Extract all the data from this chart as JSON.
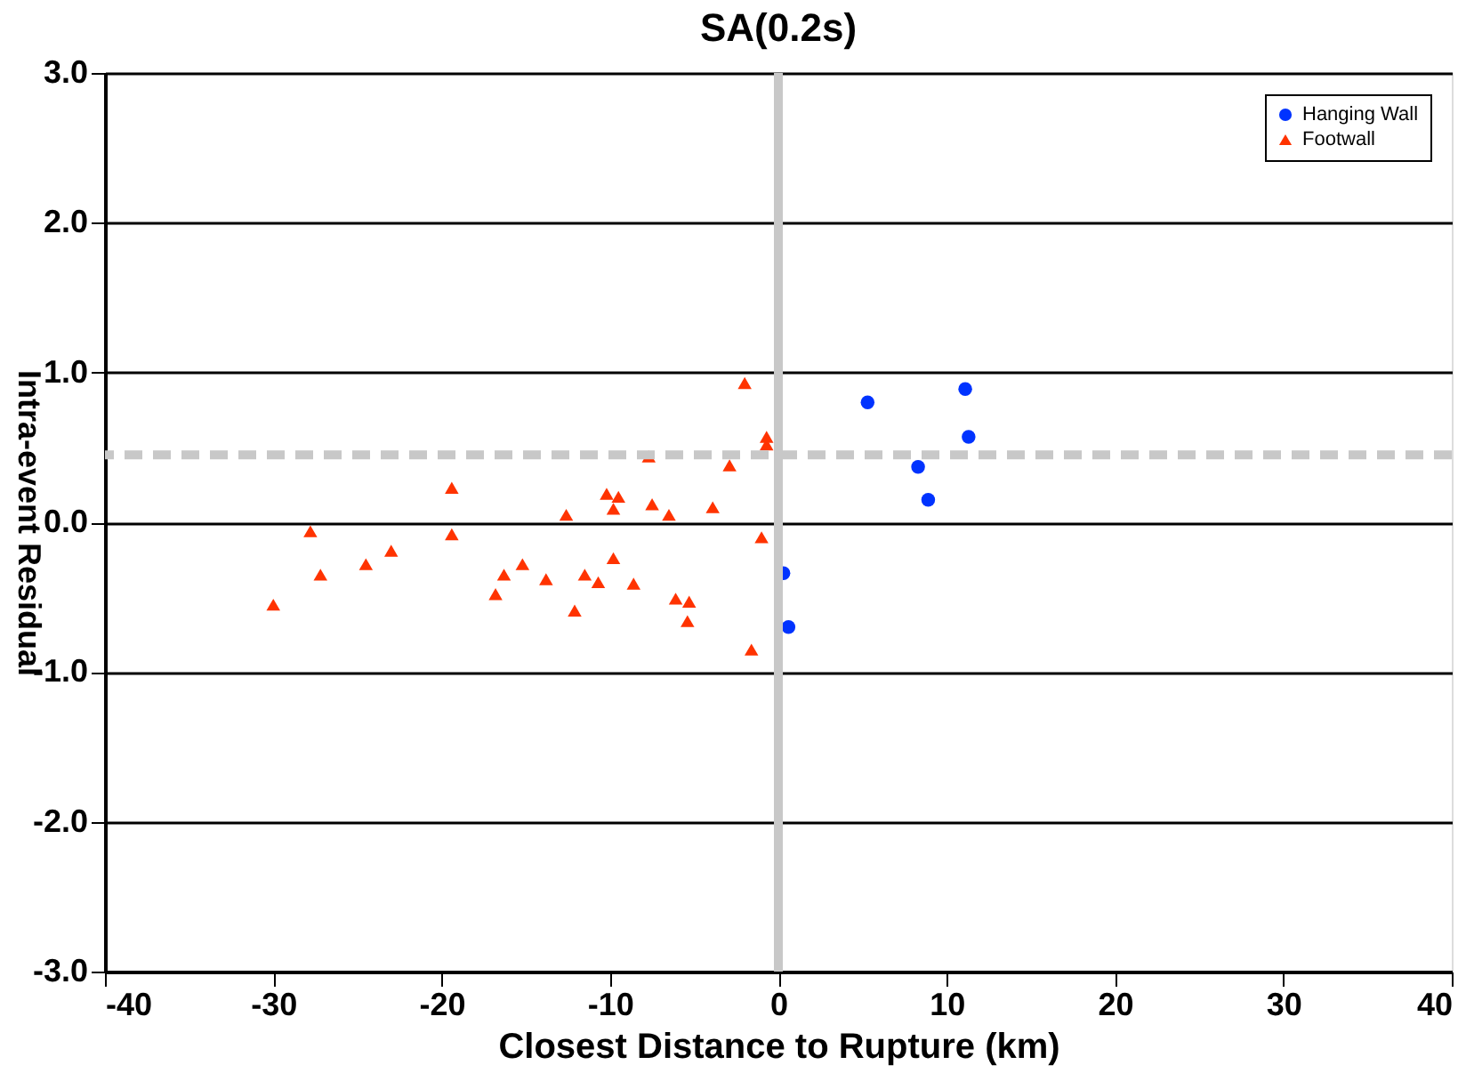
{
  "chart_data": {
    "type": "scatter",
    "title": "SA(0.2s)",
    "xlabel": "Closest Distance to Rupture (km)",
    "ylabel": "Intra-event Residual",
    "xlim": [
      -40,
      40
    ],
    "xticks": [
      -40,
      -30,
      -20,
      -10,
      0,
      10,
      20,
      30,
      40
    ],
    "ylim": [
      -3.0,
      3.0
    ],
    "yticks": [
      {
        "value": -3,
        "label": "-3.0"
      },
      {
        "value": -2,
        "label": "-2.0"
      },
      {
        "value": -1,
        "label": "-1.0"
      },
      {
        "value": 0,
        "label": "0.0"
      },
      {
        "value": 1,
        "label": "1.0"
      },
      {
        "value": 2,
        "label": "2.0"
      },
      {
        "value": 3,
        "label": "3.0"
      }
    ],
    "grid": "y",
    "legend": "top right",
    "series": [
      {
        "name": "Hanging Wall",
        "color": "#0033ff",
        "marker": "circle",
        "x": [
          0.3,
          0.6,
          5.3,
          11.1,
          11.3,
          8.3,
          8.9
        ],
        "values": [
          -0.34,
          -0.7,
          0.8,
          0.89,
          0.57,
          0.37,
          0.15
        ]
      },
      {
        "name": "Footwall",
        "color": "#ff3300",
        "marker": "triangle",
        "x": [
          -30.0,
          -27.8,
          -27.2,
          -24.5,
          -23.0,
          -19.4,
          -19.4,
          -16.8,
          -16.3,
          -15.2,
          -13.8,
          -12.6,
          -12.1,
          -11.5,
          -10.7,
          -10.2,
          -9.8,
          -9.8,
          -9.5,
          -8.6,
          -7.7,
          -7.5,
          -6.5,
          -6.1,
          -5.3,
          -5.4,
          -3.9,
          -2.9,
          -2.0,
          -1.6,
          -1.0,
          -0.7,
          -0.7
        ],
        "values": [
          -0.55,
          -0.06,
          -0.35,
          -0.28,
          -0.19,
          0.23,
          -0.08,
          -0.48,
          -0.35,
          -0.28,
          -0.38,
          0.05,
          -0.59,
          -0.35,
          -0.4,
          0.19,
          -0.24,
          0.09,
          0.17,
          -0.41,
          0.44,
          0.12,
          0.05,
          -0.51,
          -0.53,
          -0.66,
          0.1,
          0.38,
          0.93,
          -0.85,
          -0.1,
          0.57,
          0.52
        ]
      }
    ],
    "ref_lines": [
      {
        "axis": "x",
        "value": 0,
        "color": "#c8c8c8",
        "line_style": "solid"
      },
      {
        "axis": "y",
        "value": 0.45,
        "color": "#c8c8c8",
        "line_style": "dashed"
      }
    ]
  }
}
